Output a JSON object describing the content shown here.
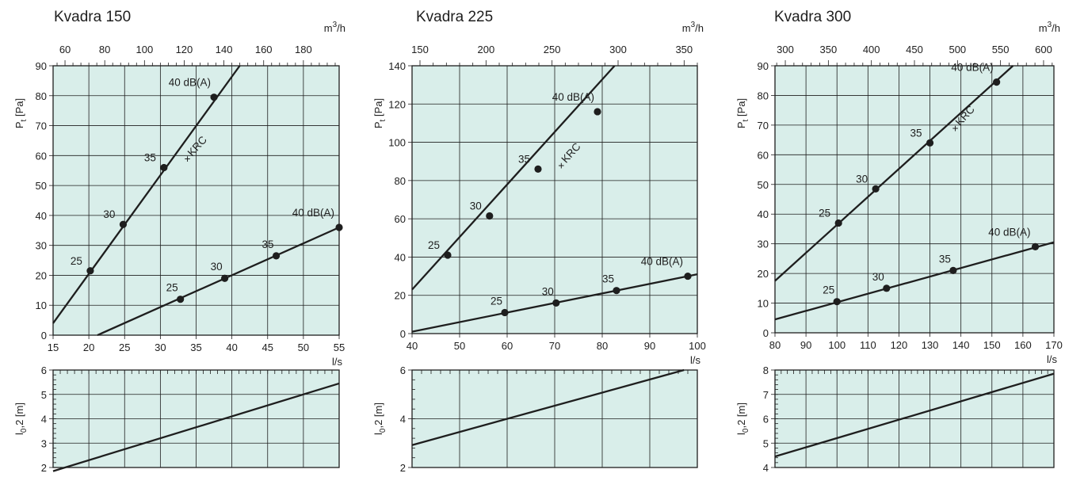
{
  "chart_data": [
    {
      "type": "line",
      "title": "Kvadra 150",
      "xlabel": "l/s",
      "ylabel": "Pt [Pa]",
      "top_axis_label": "m3/h",
      "xlim": [
        15,
        55
      ],
      "ylim": [
        0,
        90
      ],
      "x_ticks": [
        15,
        20,
        25,
        30,
        35,
        40,
        45,
        50,
        55
      ],
      "y_ticks": [
        0,
        10,
        20,
        30,
        40,
        50,
        60,
        70,
        80,
        90
      ],
      "top_ticks": [
        60,
        80,
        100,
        120,
        140,
        160,
        180
      ],
      "top_ticks_x": [
        16.67,
        22.22,
        27.78,
        33.33,
        38.89,
        44.44,
        50.0
      ],
      "grid": true,
      "series": [
        {
          "points": [
            {
              "x": 20.2,
              "y": 21.5,
              "label": "25"
            },
            {
              "x": 24.8,
              "y": 37.0,
              "label": "30"
            },
            {
              "x": 30.5,
              "y": 56.0,
              "label": "35"
            },
            {
              "x": 37.5,
              "y": 79.5,
              "label": "40 dB(A)"
            }
          ],
          "line": [
            [
              15,
              4.0
            ],
            [
              41.1,
              90
            ]
          ]
        },
        {
          "points": [
            {
              "x": 32.8,
              "y": 12.0,
              "label": "25"
            },
            {
              "x": 39.0,
              "y": 19.0,
              "label": "30"
            },
            {
              "x": 46.2,
              "y": 26.5,
              "label": "35"
            },
            {
              "x": 55.0,
              "y": 36.0,
              "label": "40 dB(A)"
            }
          ],
          "line": [
            [
              21.2,
              0
            ],
            [
              55,
              36.0
            ]
          ]
        }
      ],
      "annotations": [
        {
          "text": "KRC",
          "x": 33.8,
          "y": 59.0
        }
      ],
      "throw": {
        "ylabel": "l0,2 [m]",
        "ylim": [
          2,
          6
        ],
        "y_ticks": [
          2,
          3,
          4,
          5,
          6
        ],
        "line": [
          [
            15,
            1.85
          ],
          [
            55,
            5.45
          ]
        ]
      }
    },
    {
      "type": "line",
      "title": "Kvadra 225",
      "xlabel": "l/s",
      "ylabel": "Pt [Pa]",
      "top_axis_label": "m3/h",
      "xlim": [
        40,
        100
      ],
      "ylim": [
        0,
        140
      ],
      "x_ticks": [
        40,
        50,
        60,
        70,
        80,
        90,
        100
      ],
      "y_ticks": [
        0,
        20,
        40,
        60,
        80,
        100,
        120,
        140
      ],
      "top_ticks": [
        150,
        200,
        250,
        300,
        350
      ],
      "top_ticks_x": [
        41.67,
        55.56,
        69.44,
        83.33,
        97.22
      ],
      "grid": true,
      "series": [
        {
          "points": [
            {
              "x": 47.5,
              "y": 41.0,
              "label": "25"
            },
            {
              "x": 56.3,
              "y": 61.5,
              "label": "30"
            },
            {
              "x": 66.5,
              "y": 86.0,
              "label": "35"
            },
            {
              "x": 79.0,
              "y": 116.0,
              "label": "40 dB(A)"
            }
          ],
          "line": [
            [
              40,
              23.0
            ],
            [
              82.6,
              140
            ]
          ]
        },
        {
          "points": [
            {
              "x": 59.5,
              "y": 11.0,
              "label": "25"
            },
            {
              "x": 70.3,
              "y": 16.0,
              "label": "30"
            },
            {
              "x": 83.0,
              "y": 22.5,
              "label": "35"
            },
            {
              "x": 98.0,
              "y": 30.0,
              "label": "40 dB(A)"
            }
          ],
          "line": [
            [
              40,
              1.0
            ],
            [
              100,
              31.0
            ]
          ]
        }
      ],
      "annotations": [
        {
          "text": "KRC",
          "x": 71.4,
          "y": 88.0
        }
      ],
      "throw": {
        "ylabel": "l0,2 [m]",
        "ylim": [
          2,
          6
        ],
        "y_ticks": [
          2,
          4,
          6
        ],
        "line": [
          [
            40,
            2.92
          ],
          [
            97.2,
            6.0
          ]
        ]
      }
    },
    {
      "type": "line",
      "title": "Kvadra 300",
      "xlabel": "l/s",
      "ylabel": "Pt [Pa]",
      "top_axis_label": "m3/h",
      "xlim": [
        80,
        170
      ],
      "ylim": [
        0,
        90
      ],
      "x_ticks": [
        80,
        90,
        100,
        110,
        120,
        130,
        140,
        150,
        160,
        170
      ],
      "y_ticks": [
        0,
        10,
        20,
        30,
        40,
        50,
        60,
        70,
        80,
        90
      ],
      "top_ticks": [
        300,
        350,
        400,
        450,
        500,
        550,
        600
      ],
      "top_ticks_x": [
        83.33,
        97.22,
        111.11,
        125.0,
        138.89,
        152.78,
        166.67
      ],
      "grid": true,
      "series": [
        {
          "points": [
            {
              "x": 100.5,
              "y": 37.0,
              "label": "25"
            },
            {
              "x": 112.5,
              "y": 48.5,
              "label": "30"
            },
            {
              "x": 130.0,
              "y": 64.0,
              "label": "35"
            },
            {
              "x": 151.5,
              "y": 84.5,
              "label": "40 dB(A)"
            }
          ],
          "line": [
            [
              80,
              17.5
            ],
            [
              156.8,
              90
            ]
          ]
        },
        {
          "points": [
            {
              "x": 100.0,
              "y": 10.5,
              "label": "25"
            },
            {
              "x": 116.0,
              "y": 15.0,
              "label": "30"
            },
            {
              "x": 137.5,
              "y": 21.0,
              "label": "35"
            },
            {
              "x": 164.0,
              "y": 29.0,
              "label": "40 dB(A)"
            }
          ],
          "line": [
            [
              80,
              4.5
            ],
            [
              170,
              30.5
            ]
          ]
        }
      ],
      "annotations": [
        {
          "text": "KRC",
          "x": 138.2,
          "y": 69.0
        }
      ],
      "throw": {
        "ylabel": "l0,2 [m]",
        "ylim": [
          4,
          8
        ],
        "y_ticks": [
          4,
          5,
          6,
          7,
          8
        ],
        "line": [
          [
            80,
            4.45
          ],
          [
            170,
            7.85
          ]
        ]
      }
    }
  ]
}
